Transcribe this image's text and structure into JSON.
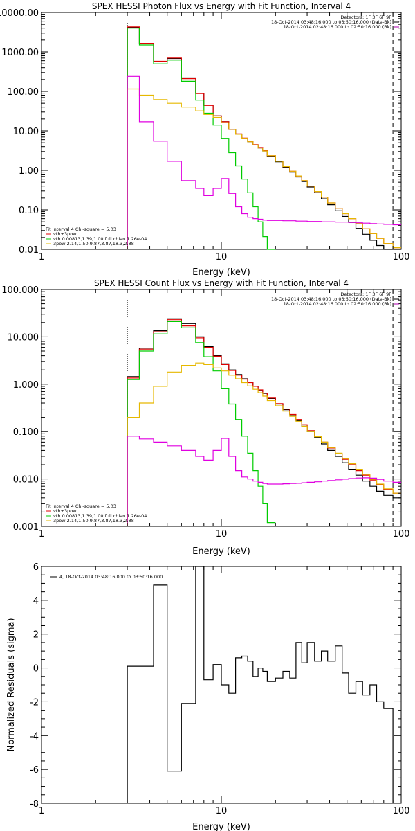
{
  "chart_data": [
    {
      "type": "line",
      "title": "SPEX HESSI Photon Flux vs Energy with Fit Function, Interval 4",
      "xlabel": "Energy (keV)",
      "ylabel": "",
      "x_scale": "log",
      "y_scale": "log",
      "xlim": [
        1,
        100
      ],
      "ylim": [
        0.01,
        10000
      ],
      "x_ticks": [
        "1",
        "10",
        "100"
      ],
      "y_ticks": [
        "10000.00",
        "1000.00",
        "100.00",
        "10.00",
        "1.00",
        "0.10",
        "0.01"
      ],
      "vlines": [
        3,
        90
      ],
      "legend_top_right": [
        "Detectors: 1F 3F 6F 9F",
        "18-Oct-2014 03:48:16.000 to 03:50:16.000 (Data-Bk)",
        "18-Oct-2014 02:48:16.000 to 02:50:16.000 (Bk)"
      ],
      "legend_top_right_colors": [
        "#000000",
        "#000000",
        "#b000b0"
      ],
      "legend_bottom_left": [
        "Fit Interval 4   Chi-square = 5.03",
        "vth+3pow",
        "vth 0.00813,1.39,1.00  full chian 1.26e-04",
        "3pow 2.14,1.50,9.87,3.87,18.3,2.88"
      ],
      "legend_bottom_left_colors": [
        "#000000",
        "#e00000",
        "#00cc00",
        "#e6b800"
      ],
      "edges": [
        3.0,
        3.5,
        4.2,
        5.0,
        6.0,
        7.2,
        8.0,
        9.0,
        10.0,
        11.0,
        12.0,
        13.0,
        14.0,
        15.0,
        16.0,
        17.0,
        18.0,
        20.0,
        22.0,
        24.0,
        26.0,
        28.0,
        30.0,
        33.0,
        36.0,
        39.0,
        43.0,
        47.0,
        51.0,
        56.0,
        61.0,
        67.0,
        73.0,
        80.0,
        90.0,
        100.0
      ],
      "series": [
        {
          "color": "#000000",
          "values": [
            4200,
            1600,
            560,
            680,
            220,
            90,
            45,
            24,
            17,
            11,
            8.2,
            6.5,
            5.3,
            4.4,
            3.7,
            3.1,
            2.3,
            1.65,
            1.2,
            0.9,
            0.68,
            0.52,
            0.38,
            0.27,
            0.19,
            0.135,
            0.095,
            0.068,
            0.048,
            0.034,
            0.024,
            0.017,
            0.0125,
            0.0095,
            0.009
          ]
        },
        {
          "color": "#e00000",
          "values": [
            4300,
            1650,
            580,
            700,
            210,
            88,
            44,
            24,
            17,
            11,
            8.4,
            6.6,
            5.4,
            4.5,
            3.8,
            3.2,
            2.35,
            1.7,
            1.25,
            0.95,
            0.72,
            0.55,
            0.4,
            0.29,
            0.21,
            0.15,
            0.11,
            0.08,
            0.06,
            0.045,
            0.033,
            0.025,
            0.019,
            0.014,
            0.011
          ]
        },
        {
          "color": "#00cc00",
          "values": [
            4000,
            1500,
            500,
            620,
            180,
            60,
            28,
            14,
            6.5,
            2.8,
            1.3,
            0.6,
            0.27,
            0.12,
            0.05,
            0.021,
            0.009
          ]
        },
        {
          "color": "#e6b800",
          "values": [
            115,
            80,
            62,
            50,
            40,
            32,
            26,
            22,
            16,
            11,
            8.2,
            6.5,
            5.3,
            4.4,
            3.7,
            3.1,
            2.35,
            1.7,
            1.25,
            0.95,
            0.72,
            0.55,
            0.4,
            0.29,
            0.21,
            0.15,
            0.11,
            0.08,
            0.06,
            0.045,
            0.033,
            0.025,
            0.019,
            0.014,
            0.011
          ]
        },
        {
          "color": "#e000e0",
          "values": [
            240,
            17,
            5.5,
            1.7,
            0.55,
            0.35,
            0.23,
            0.35,
            0.62,
            0.26,
            0.12,
            0.08,
            0.065,
            0.06,
            0.058,
            0.055,
            0.054,
            0.054,
            0.053,
            0.053,
            0.052,
            0.052,
            0.051,
            0.051,
            0.05,
            0.05,
            0.049,
            0.049,
            0.048,
            0.047,
            0.046,
            0.045,
            0.044,
            0.043,
            0.042
          ]
        }
      ]
    },
    {
      "type": "line",
      "title": "SPEX HESSI Count Flux vs Energy with Fit Function, Interval 4",
      "xlabel": "Energy (keV)",
      "ylabel": "",
      "x_scale": "log",
      "y_scale": "log",
      "xlim": [
        1,
        100
      ],
      "ylim": [
        0.001,
        100
      ],
      "x_ticks": [
        "1",
        "10",
        "100"
      ],
      "y_ticks": [
        "100.000",
        "10.000",
        "1.000",
        "0.100",
        "0.010",
        "0.001"
      ],
      "vlines": [
        3,
        90
      ],
      "legend_top_right": [
        "Detectors: 1F 3F 6F 9F",
        "18-Oct-2014 03:48:16.000 to 03:50:16.000 (Data-Bk)",
        "18-Oct-2014 02:48:16.000 to 02:50:16.000 (Bk)"
      ],
      "legend_top_right_colors": [
        "#000000",
        "#000000",
        "#b000b0"
      ],
      "legend_bottom_left": [
        "Fit Interval 4   Chi-square = 5.03",
        "vth+3pow",
        "vth 0.00813,1.39,1.00  full chian 1.26e-04",
        "3pow 2.14,1.50,9.87,3.87,18.3,2.88"
      ],
      "legend_bottom_left_colors": [
        "#000000",
        "#e00000",
        "#00cc00",
        "#e6b800"
      ],
      "edges": [
        3.0,
        3.5,
        4.2,
        5.0,
        6.0,
        7.2,
        8.0,
        9.0,
        10.0,
        11.0,
        12.0,
        13.0,
        14.0,
        15.0,
        16.0,
        17.0,
        18.0,
        20.0,
        22.0,
        24.0,
        26.0,
        28.0,
        30.0,
        33.0,
        36.0,
        39.0,
        43.0,
        47.0,
        51.0,
        56.0,
        61.0,
        67.0,
        73.0,
        80.0,
        90.0,
        100.0
      ],
      "series": [
        {
          "color": "#000000",
          "values": [
            1.45,
            5.8,
            13.5,
            24,
            19,
            10,
            6.2,
            4.0,
            2.7,
            2.0,
            1.6,
            1.3,
            1.1,
            0.9,
            0.75,
            0.64,
            0.5,
            0.38,
            0.29,
            0.22,
            0.17,
            0.13,
            0.1,
            0.075,
            0.055,
            0.04,
            0.03,
            0.022,
            0.016,
            0.012,
            0.009,
            0.007,
            0.0055,
            0.0045,
            0.004
          ]
        },
        {
          "color": "#e00000",
          "values": [
            1.35,
            5.5,
            12.8,
            23,
            17,
            9.5,
            6.0,
            3.9,
            2.6,
            1.95,
            1.55,
            1.28,
            1.08,
            0.9,
            0.76,
            0.65,
            0.51,
            0.39,
            0.3,
            0.23,
            0.18,
            0.14,
            0.105,
            0.08,
            0.06,
            0.045,
            0.034,
            0.026,
            0.02,
            0.015,
            0.012,
            0.0095,
            0.0075,
            0.006,
            0.005
          ]
        },
        {
          "color": "#00cc00",
          "values": [
            1.25,
            5.0,
            11.5,
            21,
            15.5,
            7.5,
            3.8,
            1.9,
            0.8,
            0.38,
            0.18,
            0.08,
            0.035,
            0.015,
            0.007,
            0.003,
            0.0012
          ]
        },
        {
          "color": "#e6b800",
          "values": [
            0.2,
            0.4,
            0.9,
            1.8,
            2.5,
            2.8,
            2.6,
            2.2,
            1.9,
            1.55,
            1.3,
            1.08,
            0.92,
            0.78,
            0.66,
            0.56,
            0.45,
            0.35,
            0.27,
            0.21,
            0.165,
            0.13,
            0.1,
            0.078,
            0.06,
            0.046,
            0.035,
            0.027,
            0.021,
            0.016,
            0.0125,
            0.0098,
            0.0078,
            0.0062,
            0.005
          ]
        },
        {
          "color": "#e000e0",
          "values": [
            0.08,
            0.07,
            0.06,
            0.05,
            0.04,
            0.03,
            0.025,
            0.04,
            0.072,
            0.03,
            0.015,
            0.011,
            0.01,
            0.009,
            0.0085,
            0.008,
            0.0078,
            0.0078,
            0.0079,
            0.008,
            0.0081,
            0.0083,
            0.0085,
            0.0087,
            0.009,
            0.0093,
            0.0096,
            0.0099,
            0.0102,
            0.0105,
            0.0106,
            0.0104,
            0.0098,
            0.009,
            0.0085
          ]
        }
      ]
    },
    {
      "type": "line",
      "title": "",
      "xlabel": "Energy (keV)",
      "ylabel": "Normalized Residuals (sigma)",
      "x_scale": "log",
      "y_scale": "linear",
      "xlim": [
        1,
        100
      ],
      "ylim": [
        -8,
        6
      ],
      "x_ticks": [
        "1",
        "10",
        "100"
      ],
      "y_ticks": [
        "6",
        "4",
        "2",
        "0",
        "-2",
        "-4",
        "-6",
        "-8"
      ],
      "legend_top_left": [
        "4, 18-Oct-2014 03:48:16.000 to 03:50:16.000"
      ],
      "edges": [
        3.0,
        3.5,
        4.2,
        5.0,
        6.0,
        7.2,
        8.0,
        9.0,
        10.0,
        11.0,
        12.0,
        13.0,
        14.0,
        15.0,
        16.0,
        17.0,
        18.0,
        20.0,
        22.0,
        24.0,
        26.0,
        28.0,
        30.0,
        33.0,
        36.0,
        39.0,
        43.0,
        47.0,
        51.0,
        56.0,
        61.0,
        67.0,
        73.0,
        80.0,
        90.0
      ],
      "series": [
        {
          "color": "#000000",
          "values": [
            0.1,
            0.1,
            4.9,
            -6.1,
            -2.1,
            6.0,
            -0.7,
            0.2,
            -1.0,
            -1.5,
            0.6,
            0.7,
            0.4,
            -0.5,
            0.0,
            -0.2,
            -0.8,
            -0.6,
            -0.2,
            -0.6,
            1.5,
            0.3,
            1.5,
            0.4,
            1.0,
            0.4,
            1.3,
            -0.3,
            -1.5,
            -0.8,
            -1.6,
            -1.0,
            -2.0,
            -2.4
          ]
        }
      ]
    }
  ]
}
